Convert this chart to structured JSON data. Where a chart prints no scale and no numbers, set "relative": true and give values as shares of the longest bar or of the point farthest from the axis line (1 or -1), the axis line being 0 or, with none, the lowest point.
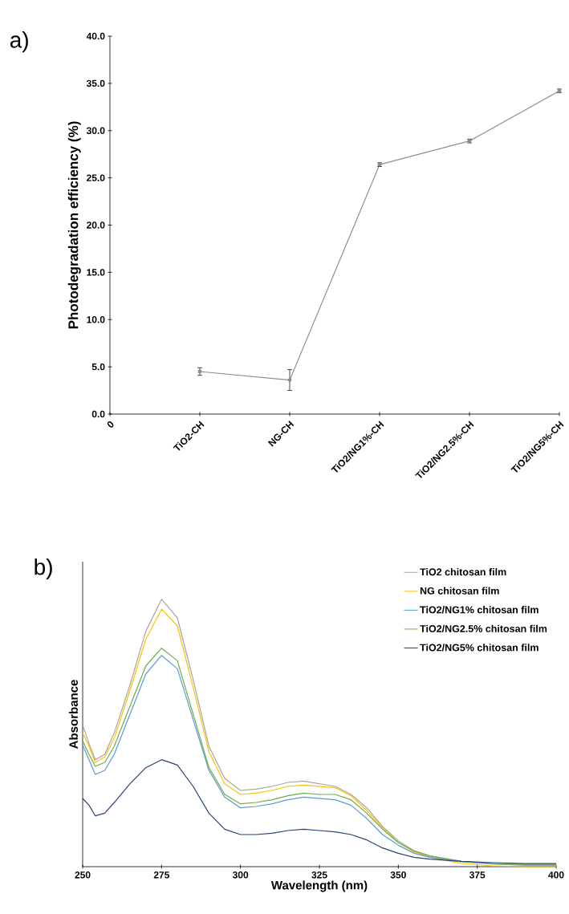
{
  "chart_data": [
    {
      "type": "line",
      "title": "a)",
      "ylabel": "Photodegradation efficiency (%)",
      "categories": [
        "0",
        "TiO2-CH",
        "NG-CH",
        "TiO2/NG1%-CH",
        "TiO2/NG2.5%-CH",
        "TiO2/NG5%-CH"
      ],
      "values": [
        null,
        4.5,
        3.6,
        26.4,
        28.9,
        34.2
      ],
      "errors": [
        null,
        0.4,
        1.1,
        0.2,
        0.2,
        0.2
      ],
      "color": "#8c8c8c",
      "marker": "circle",
      "ylim": [
        0,
        40
      ],
      "yticks": [
        {
          "value": 0,
          "label": "0.0"
        },
        {
          "value": 5,
          "label": "5.0"
        },
        {
          "value": 10,
          "label": "10.0"
        },
        {
          "value": 15,
          "label": "15.0"
        },
        {
          "value": 20,
          "label": "20.0"
        },
        {
          "value": 25,
          "label": "25.0"
        },
        {
          "value": 30,
          "label": "30.0"
        },
        {
          "value": 35,
          "label": "35.0"
        },
        {
          "value": 40,
          "label": "40.0"
        }
      ]
    },
    {
      "type": "line",
      "title": "b)",
      "xlabel": "Wavelength (nm)",
      "ylabel": "Absorbance",
      "relative": true,
      "x": [
        250,
        252,
        254,
        257,
        260,
        265,
        270,
        275,
        280,
        285,
        290,
        295,
        300,
        305,
        310,
        315,
        320,
        325,
        330,
        335,
        340,
        345,
        350,
        355,
        360,
        370,
        380,
        390,
        400
      ],
      "series": [
        {
          "name": "TiO2 chitosan film",
          "color": "#a5a5a5",
          "values": [
            0.53,
            0.46,
            0.4,
            0.42,
            0.5,
            0.68,
            0.88,
            1.0,
            0.93,
            0.7,
            0.45,
            0.33,
            0.285,
            0.29,
            0.3,
            0.315,
            0.32,
            0.31,
            0.3,
            0.27,
            0.22,
            0.15,
            0.096,
            0.06,
            0.04,
            0.02,
            0.01,
            0.005,
            0.005
          ]
        },
        {
          "name": "NG chitosan film",
          "color": "#ffc000",
          "values": [
            0.5,
            0.45,
            0.39,
            0.41,
            0.48,
            0.66,
            0.85,
            0.963,
            0.9,
            0.67,
            0.43,
            0.31,
            0.27,
            0.275,
            0.285,
            0.3,
            0.305,
            0.3,
            0.295,
            0.265,
            0.21,
            0.145,
            0.09,
            0.055,
            0.035,
            0.012,
            0.003,
            0.0,
            0.0
          ]
        },
        {
          "name": "TiO2/NG1% chitosan film",
          "color": "#5b9bd5",
          "values": [
            0.455,
            0.4,
            0.345,
            0.36,
            0.42,
            0.57,
            0.72,
            0.79,
            0.74,
            0.55,
            0.36,
            0.26,
            0.22,
            0.225,
            0.235,
            0.25,
            0.26,
            0.255,
            0.25,
            0.23,
            0.18,
            0.12,
            0.08,
            0.05,
            0.035,
            0.018,
            0.01,
            0.008,
            0.008
          ]
        },
        {
          "name": "TiO2/NG2.5% chitosan film",
          "color": "#70ad47",
          "values": [
            0.47,
            0.42,
            0.375,
            0.39,
            0.45,
            0.6,
            0.75,
            0.817,
            0.77,
            0.57,
            0.37,
            0.27,
            0.235,
            0.24,
            0.25,
            0.265,
            0.275,
            0.27,
            0.27,
            0.25,
            0.2,
            0.14,
            0.09,
            0.058,
            0.04,
            0.02,
            0.012,
            0.01,
            0.01
          ]
        },
        {
          "name": "TiO2/NG5% chitosan film",
          "color": "#264478",
          "values": [
            0.255,
            0.23,
            0.19,
            0.2,
            0.24,
            0.31,
            0.37,
            0.4,
            0.38,
            0.3,
            0.2,
            0.14,
            0.12,
            0.12,
            0.125,
            0.135,
            0.14,
            0.135,
            0.13,
            0.12,
            0.1,
            0.07,
            0.05,
            0.035,
            0.028,
            0.02,
            0.015,
            0.012,
            0.012
          ]
        }
      ],
      "xlim": [
        250,
        400
      ],
      "xticks": [
        250,
        275,
        300,
        325,
        350,
        375,
        400
      ],
      "legend": "top right"
    }
  ]
}
